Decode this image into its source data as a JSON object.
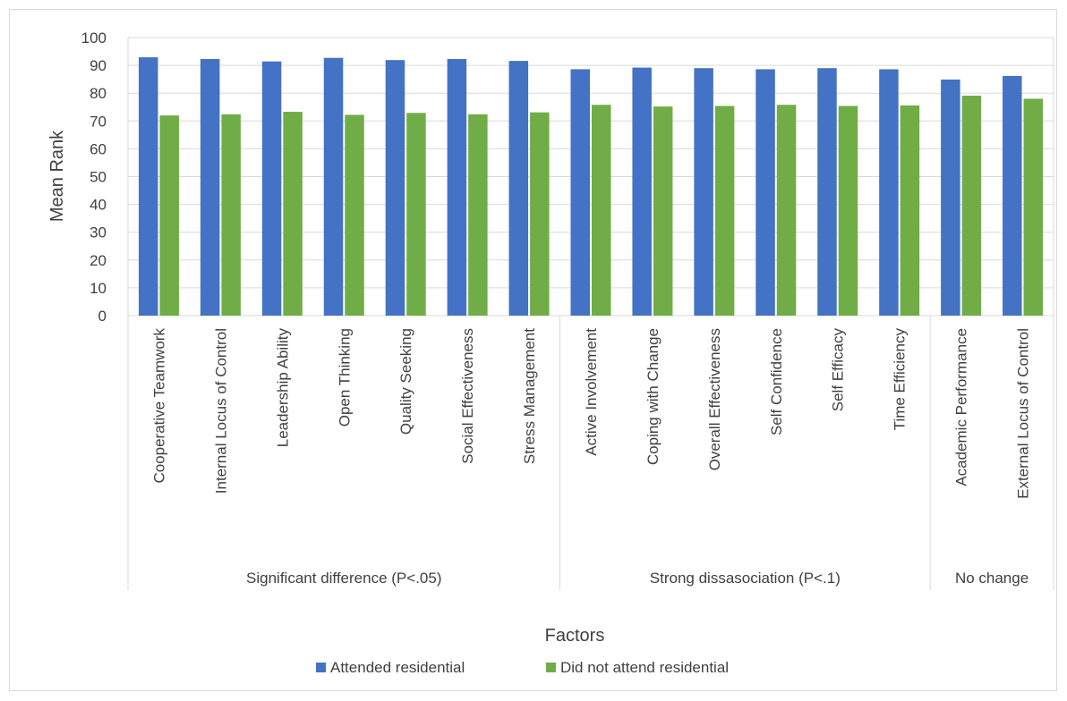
{
  "chart_data": {
    "type": "bar",
    "xlabel": "Factors",
    "ylabel": "Mean Rank",
    "ylim": [
      0,
      100
    ],
    "yticks": [
      0,
      10,
      20,
      30,
      40,
      50,
      60,
      70,
      80,
      90,
      100
    ],
    "grid": true,
    "legend_position": "bottom",
    "categories": [
      "Cooperative Teamwork",
      "Internal Locus of Control",
      "Leadership Ability",
      "Open Thinking",
      "Quality Seeking",
      "Social Effectiveness",
      "Stress Management",
      "Active Involvement",
      "Coping with Change",
      "Overall Effectiveness",
      "Self Confidence",
      "Self Efficacy",
      "Time Efficiency",
      "Academic Performance",
      "External Locus of Control"
    ],
    "groups": [
      {
        "label": "Significant difference (P<.05)",
        "count": 7
      },
      {
        "label": "Strong dissasociation (P<.1)",
        "count": 6
      },
      {
        "label": "No change",
        "count": 2
      }
    ],
    "series": [
      {
        "name": "Attended residential",
        "color": "#4472c4",
        "values": [
          92.9,
          92.3,
          91.4,
          92.7,
          91.9,
          92.3,
          91.6,
          88.6,
          89.2,
          89.0,
          88.6,
          89.0,
          88.6,
          84.9,
          86.2
        ]
      },
      {
        "name": "Did not attend residential",
        "color": "#70ad47",
        "values": [
          72.0,
          72.4,
          73.3,
          72.2,
          72.9,
          72.4,
          73.1,
          75.8,
          75.2,
          75.4,
          75.8,
          75.4,
          75.6,
          79.1,
          78.0
        ]
      }
    ]
  }
}
